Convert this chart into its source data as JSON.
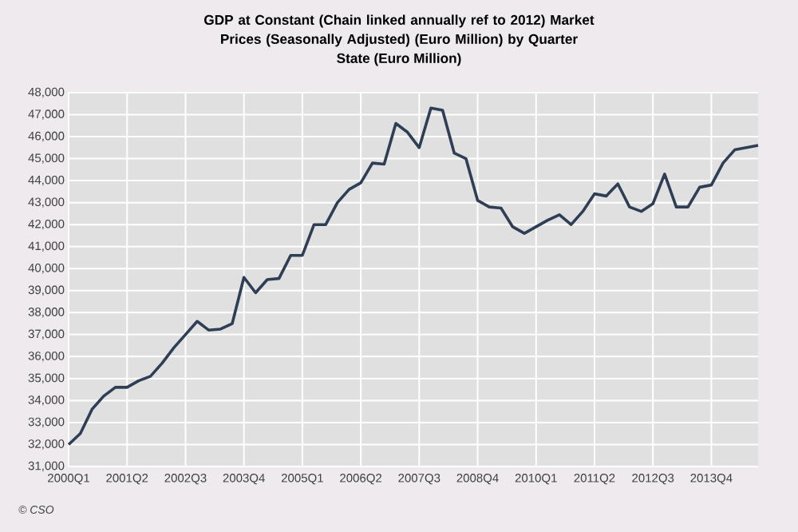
{
  "chart_data": {
    "type": "line",
    "title": "GDP at Constant (Chain linked annually ref to 2012) Market Prices (Seasonally Adjusted) (Euro Million) by Quarter",
    "subtitle": "State (Euro Million)",
    "categories": [
      "2000Q1",
      null,
      null,
      null,
      null,
      "2001Q2",
      null,
      null,
      null,
      null,
      "2002Q3",
      null,
      null,
      null,
      null,
      "2003Q4",
      null,
      null,
      null,
      null,
      "2005Q1",
      null,
      null,
      null,
      null,
      "2006Q2",
      null,
      null,
      null,
      null,
      "2007Q3",
      null,
      null,
      null,
      null,
      "2008Q4",
      null,
      null,
      null,
      null,
      "2010Q1",
      null,
      null,
      null,
      null,
      "2011Q2",
      null,
      null,
      null,
      null,
      "2012Q3",
      null,
      null,
      null,
      null,
      "2013Q4",
      null,
      null,
      null,
      null
    ],
    "series": [
      {
        "color": "#2e3f55",
        "values": [
          32000,
          32500,
          33600,
          34200,
          34600,
          34600,
          34900,
          35100,
          35700,
          36400,
          37000,
          37600,
          37200,
          37250,
          37500,
          39600,
          38900,
          39500,
          39550,
          40600,
          40600,
          42000,
          42000,
          43000,
          43600,
          43900,
          44800,
          44750,
          46600,
          46200,
          45500,
          47300,
          47200,
          45250,
          45000,
          43100,
          42800,
          42750,
          41900,
          41600,
          41900,
          42200,
          42450,
          42000,
          42600,
          43400,
          43300,
          43850,
          42800,
          42600,
          42950,
          44300,
          42800,
          42800,
          43700,
          43800,
          44800,
          45400,
          45500,
          45600
        ]
      }
    ],
    "ylim": [
      31000,
      48000
    ],
    "yticks": [
      {
        "value": 31000,
        "label": "31,000"
      },
      {
        "value": 32000,
        "label": "32,000"
      },
      {
        "value": 33000,
        "label": "33,000"
      },
      {
        "value": 34000,
        "label": "34,000"
      },
      {
        "value": 35000,
        "label": "35,000"
      },
      {
        "value": 36000,
        "label": "36,000"
      },
      {
        "value": 37000,
        "label": "37,000"
      },
      {
        "value": 38000,
        "label": "38,000"
      },
      {
        "value": 39000,
        "label": "39,000"
      },
      {
        "value": 40000,
        "label": "40,000"
      },
      {
        "value": 41000,
        "label": "41,000"
      },
      {
        "value": 42000,
        "label": "42,000"
      },
      {
        "value": 43000,
        "label": "43,000"
      },
      {
        "value": 44000,
        "label": "44,000"
      },
      {
        "value": 45000,
        "label": "45,000"
      },
      {
        "value": 46000,
        "label": "46,000"
      },
      {
        "value": 47000,
        "label": "47,000"
      },
      {
        "value": 48000,
        "label": "48,000"
      }
    ],
    "grid": true,
    "marker": "none",
    "line_style": "solid",
    "annotations": [
      "© CSO"
    ]
  }
}
